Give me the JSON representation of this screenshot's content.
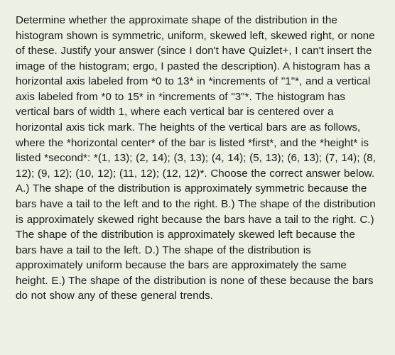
{
  "question": {
    "text": "Determine whether the approximate shape of the distribution in the histogram shown is symmetric, uniform, skewed left, skewed right, or none of these. Justify your answer (since I don't have Quizlet+, I can't insert the image of the histogram; ergo, I pasted the description). A histogram has a horizontal axis labeled from *0 to 13* in *increments of \"1\"*, and a vertical axis labeled from *0 to 15* in *increments of \"3\"*. The histogram has vertical bars of width 1, where each vertical bar is centered over a horizontal axis tick mark. The heights of the vertical bars are as follows, where the *horizontal center* of the bar is listed *first*, and the *height* is listed *second*: *(1, 13); (2, 14); (3, 13); (4, 14); (5, 13); (6, 13); (7, 14); (8, 12); (9, 12); (10, 12); (11, 12); (12, 12)*. Choose the correct answer below. A.) The shape of the distribution is approximately symmetric because the bars have a tail to the left and to the right. B.) The shape of the distribution is approximately skewed right because the bars have a tail to the right. C.) The shape of the distribution is approximately skewed left because the bars have a tail to the left. D.) The shape of the distribution is approximately uniform because the bars are approximately the same height. E.) The shape of the distribution is none of these because the bars do not show any of these general trends.",
    "background_color": "#edf1e4",
    "text_color": "#1a1a1a",
    "font_size": 15.2,
    "line_height": 1.42,
    "font_family": "Arial, Helvetica, sans-serif"
  }
}
